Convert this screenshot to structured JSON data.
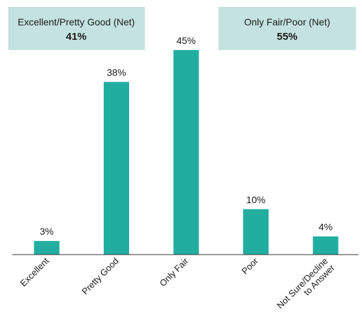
{
  "colors": {
    "bar": "#21ae9f",
    "callout_bg": "#c4e2df",
    "axis": "#333333"
  },
  "callouts": [
    {
      "title": "Excellent/Pretty Good (Net)",
      "value": "41%"
    },
    {
      "title": "Only Fair/Poor (Net)",
      "value": "55%"
    }
  ],
  "chart_data": {
    "type": "bar",
    "categories": [
      "Excellent",
      "Pretty Good",
      "Only Fair",
      "Poor",
      "Not Sure/Decline to Answer"
    ],
    "category_lines": [
      [
        "Excellent"
      ],
      [
        "Pretty Good"
      ],
      [
        "Only Fair"
      ],
      [
        "Poor"
      ],
      [
        "Not Sure/Decline",
        "to Answer"
      ]
    ],
    "values": [
      3,
      38,
      45,
      10,
      4
    ],
    "value_labels": [
      "3%",
      "38%",
      "45%",
      "10%",
      "4%"
    ],
    "title": "",
    "xlabel": "",
    "ylabel": "",
    "ylim": [
      0,
      45
    ],
    "grid": false,
    "legend": "none"
  }
}
